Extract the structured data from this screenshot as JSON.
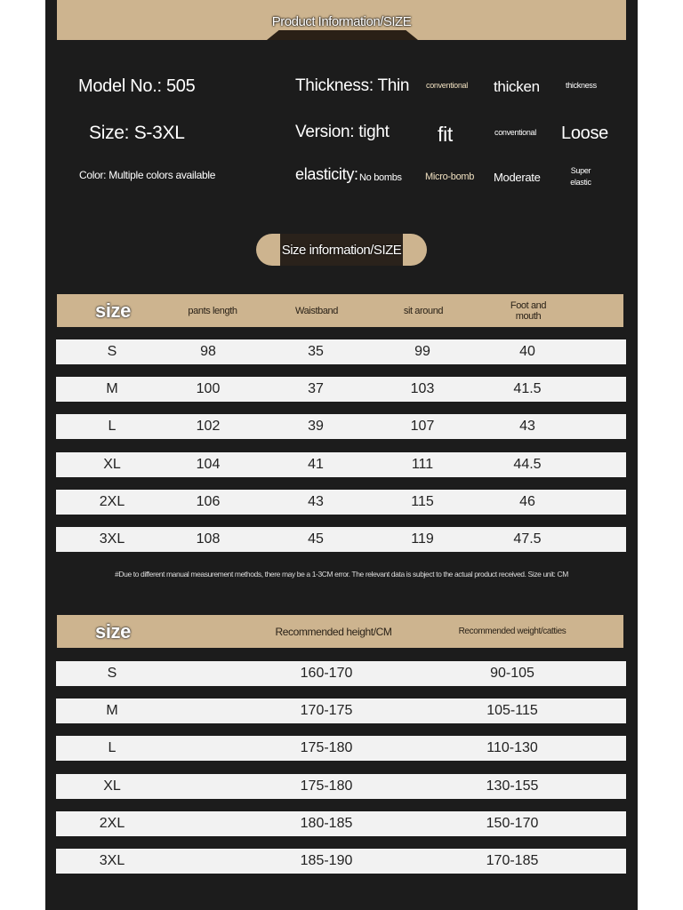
{
  "banner": {
    "title": "Product Information/SIZE"
  },
  "info": {
    "model": "Model No.: 505",
    "size": "Size: S-3XL",
    "color": "Color: Multiple colors available",
    "thickness": {
      "label": "Thickness: Thin",
      "options": [
        "conventional",
        "thicken",
        "thickness"
      ]
    },
    "version": {
      "label": "Version:  tight",
      "options": [
        "fit",
        "conventional",
        "Loose"
      ]
    },
    "elasticity": {
      "label": "elasticity:",
      "options": [
        "No bombs",
        "Micro-bomb",
        "Moderate",
        "Super elastic"
      ]
    }
  },
  "size_section": {
    "title": "Size information/SIZE"
  },
  "table1": {
    "headers": [
      "size",
      "pants length",
      "Waistband",
      "sit around",
      "Foot and mouth"
    ],
    "rows": [
      [
        "S",
        "98",
        "35",
        "99",
        "40"
      ],
      [
        "M",
        "100",
        "37",
        "103",
        "41.5"
      ],
      [
        "L",
        "102",
        "39",
        "107",
        "43"
      ],
      [
        "XL",
        "104",
        "41",
        "111",
        "44.5"
      ],
      [
        "2XL",
        "106",
        "43",
        "115",
        "46"
      ],
      [
        "3XL",
        "108",
        "45",
        "119",
        "47.5"
      ]
    ]
  },
  "note": "#Due to different manual measurement methods, there may be a 1-3CM error. The relevant data is subject to the actual product received. Size unit: CM",
  "table2": {
    "headers": [
      "size",
      "Recommended height/CM",
      "Recommended weight/catties"
    ],
    "rows": [
      [
        "S",
        "160-170",
        "90-105"
      ],
      [
        "M",
        "170-175",
        "105-115"
      ],
      [
        "L",
        "175-180",
        "110-130"
      ],
      [
        "XL",
        "175-180",
        "130-155"
      ],
      [
        "2XL",
        "180-185",
        "150-170"
      ],
      [
        "3XL",
        "185-190",
        "170-185"
      ]
    ]
  },
  "colors": {
    "background": "#1c1c1c",
    "accent": "#cdb48f",
    "row": "#f2f2f2"
  }
}
